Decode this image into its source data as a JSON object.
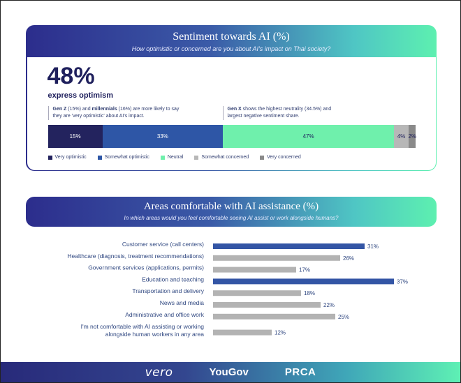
{
  "sentiment": {
    "title": "Sentiment towards AI (%)",
    "subtitle": "How optimistic or concerned are you about AI's impact on Thai society?",
    "headline_value": "48%",
    "headline_label": "express optimism",
    "note1": {
      "b1": "Gen Z",
      "t1": " (15%) and ",
      "b2": "millennials",
      "t2": " (16%) are more likely to say they are 'very optimistic' about AI's impact."
    },
    "note2": {
      "b1": "Gen X",
      "t1": " shows the highest neutrality (34.5%) and largest negative sentiment share."
    }
  },
  "chart_data": [
    {
      "type": "bar",
      "orientation": "stacked-horizontal",
      "title": "Sentiment towards AI (%)",
      "categories": [
        "Very optimistic",
        "Somewhat optimistic",
        "Neutral",
        "Somewhat concerned",
        "Very concerned"
      ],
      "values": [
        15,
        33,
        47,
        4,
        2
      ],
      "labels": [
        "15%",
        "33%",
        "47%",
        "4%",
        "2%"
      ],
      "colors": [
        "#23235e",
        "#2e56a6",
        "#6ff0ac",
        "#b7b7b7",
        "#8a8a8a"
      ],
      "label_colors": [
        "#ffffff",
        "#ffffff",
        "#1e1f5c",
        "#1e1f5c",
        "#1e1f5c"
      ],
      "legend": "bottom-left"
    },
    {
      "type": "bar",
      "orientation": "horizontal",
      "title": "Areas comfortable with AI assistance (%)",
      "subtitle": "In which areas would you feel comfortable seeing AI assist or work alongside humans?",
      "categories": [
        [
          "Customer service (call centers)"
        ],
        [
          "Healthcare (diagnosis, treatment recommendations)"
        ],
        [
          "Government services (applications, permits)"
        ],
        [
          "Education and teaching"
        ],
        [
          "Transportation and delivery"
        ],
        [
          "News and media"
        ],
        [
          "Administrative and office work"
        ],
        [
          "I'm not comfortable with AI assisting or working",
          "alongside human workers in any area"
        ]
      ],
      "values": [
        31,
        26,
        17,
        37,
        18,
        22,
        25,
        12
      ],
      "labels": [
        "31%",
        "26%",
        "17%",
        "37%",
        "18%",
        "22%",
        "25%",
        "12%"
      ],
      "highlight": [
        true,
        false,
        false,
        true,
        false,
        false,
        false,
        false
      ],
      "highlight_color": "#3355a5",
      "base_color": "#b3b3b3",
      "xlim": [
        0,
        40
      ]
    }
  ],
  "footer": {
    "logos": [
      "vero",
      "YouGov",
      "PRCA"
    ]
  }
}
